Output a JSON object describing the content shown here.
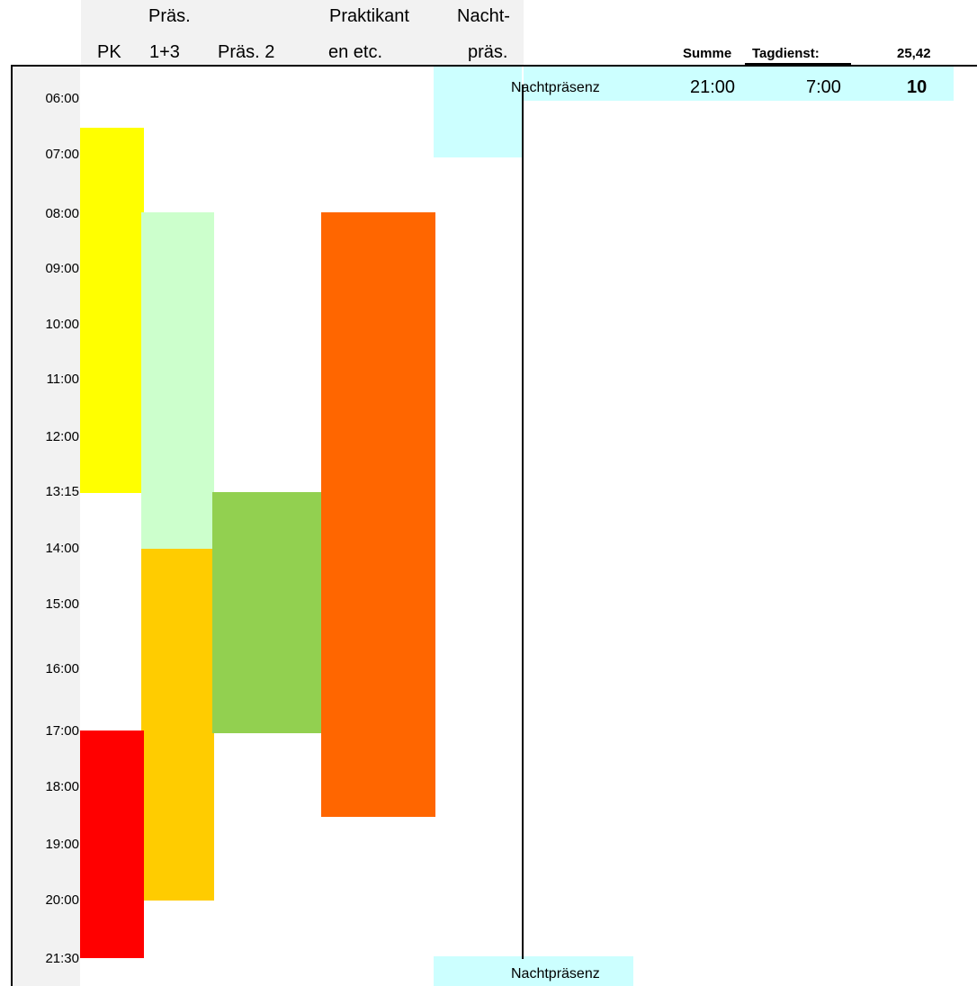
{
  "columns": [
    {
      "line1": "",
      "line2": "PK"
    },
    {
      "line1": "Präs.",
      "line2": "1+3"
    },
    {
      "line1": "",
      "line2": "Präs. 2"
    },
    {
      "line1": "Praktikant",
      "line2": "en etc."
    },
    {
      "line1": "Nacht-",
      "line2": "präs."
    }
  ],
  "summary": {
    "label1": "Summe",
    "label2": "Tagdienst:",
    "value": "25,42"
  },
  "night_row": {
    "label": "Nachtpräsenz",
    "start": "21:00",
    "end": "7:00",
    "hours": "10"
  },
  "night_label_bottom": "Nachtpräsenz",
  "times": [
    "06:00",
    "07:00",
    "08:00",
    "09:00",
    "10:00",
    "11:00",
    "12:00",
    "13:15",
    "14:00",
    "15:00",
    "16:00",
    "17:00",
    "18:00",
    "19:00",
    "20:00",
    "21:30"
  ],
  "colors": {
    "pk_morning": "#ffff00",
    "pk_evening": "#ff0000",
    "praes13_morning": "#ccffcc",
    "praes13_afternoon": "#ffcc00",
    "praes2": "#92d050",
    "praktikant": "#ff6600",
    "nacht": "#ccffff",
    "header_bg": "#f2f2f2"
  }
}
